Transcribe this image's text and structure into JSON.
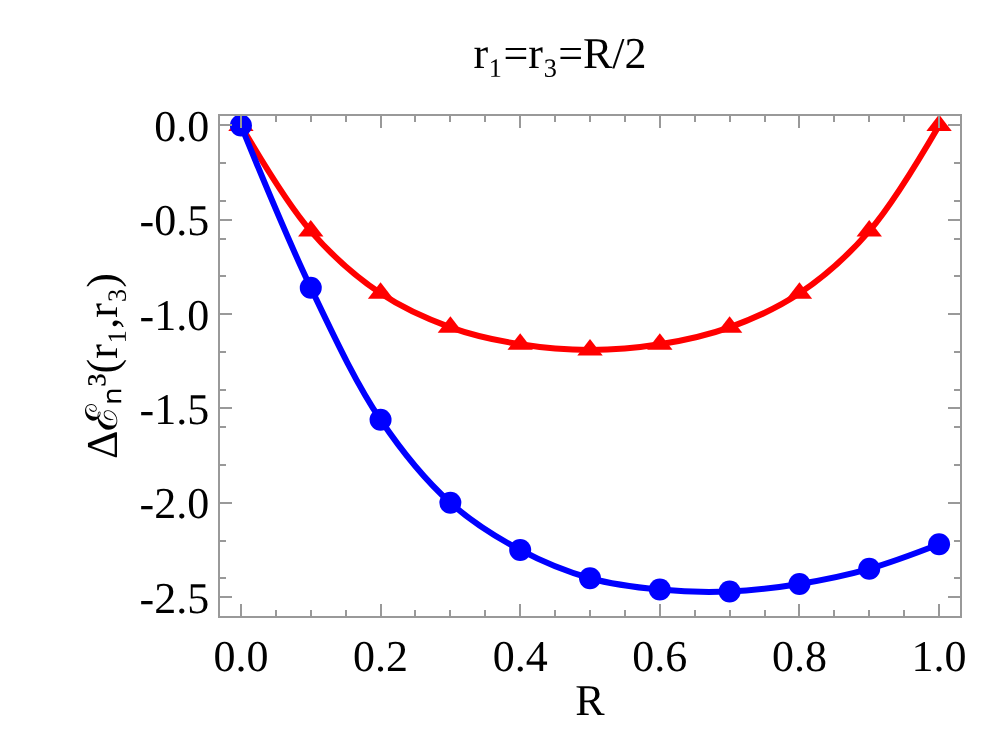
{
  "chart_data": {
    "type": "line",
    "title": "r₁=r₃=R/2",
    "xlabel": "R",
    "ylabel": "Δℰₙ³(r₁,r₃)",
    "x": [
      0,
      0.1,
      0.2,
      0.3,
      0.4,
      0.5,
      0.6,
      0.7,
      0.8,
      0.9,
      1.0
    ],
    "series": [
      {
        "color": "#ff0000",
        "marker": "triangle",
        "values": [
          0,
          -0.56,
          -0.89,
          -1.07,
          -1.16,
          -1.19,
          -1.16,
          -1.07,
          -0.89,
          -0.56,
          0
        ]
      },
      {
        "color": "#0000ff",
        "marker": "circle",
        "values": [
          0,
          -0.86,
          -1.56,
          -2.0,
          -2.25,
          -2.4,
          -2.46,
          -2.47,
          -2.43,
          -2.35,
          -2.22
        ]
      }
    ],
    "xlim": [
      -0.03,
      1.03
    ],
    "ylim": [
      -2.6,
      0.05
    ],
    "xticks": [
      {
        "value": 0,
        "label": "0.0"
      },
      0.2,
      0.4,
      0.6,
      0.8,
      {
        "value": 1,
        "label": "1.0"
      }
    ],
    "yticks": [
      {
        "value": 0,
        "label": "0.0"
      },
      -0.5,
      {
        "value": -1,
        "label": "-1.0"
      },
      -1.5,
      {
        "value": -2,
        "label": "-2.0"
      },
      -2.5
    ],
    "legend": false,
    "line_style": "solid"
  }
}
